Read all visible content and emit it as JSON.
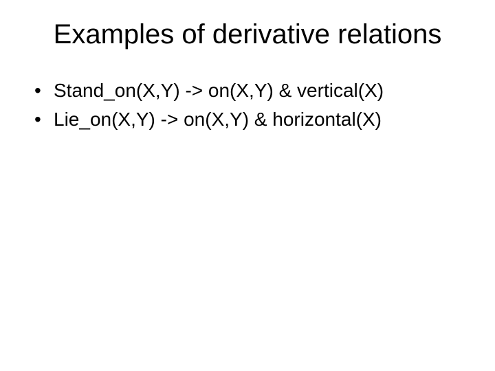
{
  "slide": {
    "title": "Examples of derivative relations",
    "bullets": [
      "Stand_on(X,Y) -> on(X,Y) & vertical(X)",
      "Lie_on(X,Y) -> on(X,Y) & horizontal(X)"
    ],
    "style": {
      "background_color": "#ffffff",
      "text_color": "#000000",
      "title_fontsize": 40,
      "title_weight": 400,
      "body_fontsize": 28,
      "font_family": "Arial"
    }
  }
}
